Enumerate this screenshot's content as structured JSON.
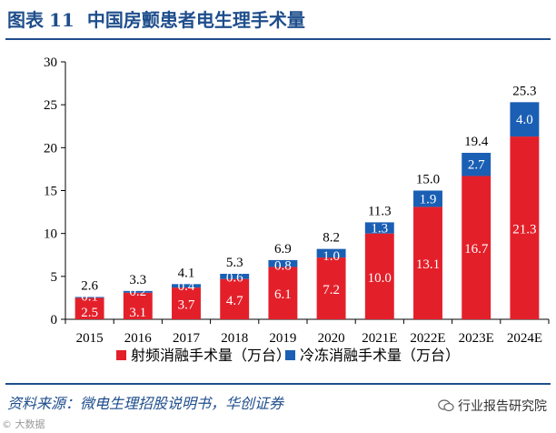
{
  "figure": {
    "label": "图表",
    "number": "11",
    "title": "中国房颤患者电生理手术量"
  },
  "source": "资料来源：微电生理招股说明书，华创证券",
  "watermark_right": "行业报告研究院",
  "watermark_left": "© 大数据",
  "chart_data": {
    "type": "bar",
    "stacked": true,
    "title": "中国房颤患者电生理手术量",
    "xlabel": "",
    "ylabel": "",
    "ylim": [
      0,
      30
    ],
    "yticks": [
      0,
      5,
      10,
      15,
      20,
      25,
      30
    ],
    "categories": [
      "2015",
      "2016",
      "2017",
      "2018",
      "2019",
      "2020",
      "2021E",
      "2022E",
      "2023E",
      "2024E"
    ],
    "series": [
      {
        "name": "射频消融手术量（万台）",
        "color": "#e3202a",
        "values": [
          2.5,
          3.1,
          3.7,
          4.7,
          6.1,
          7.2,
          10.0,
          13.1,
          16.7,
          21.3
        ],
        "labels": [
          "2.5",
          "3.1",
          "3.7",
          "4.7",
          "6.1",
          "7.2",
          "10.0",
          "13.1",
          "16.7",
          "21.3"
        ]
      },
      {
        "name": "冷冻消融手术量（万台）",
        "color": "#1a5fb4",
        "values": [
          0.1,
          0.2,
          0.4,
          0.6,
          0.8,
          1.0,
          1.3,
          1.9,
          2.7,
          4.0
        ],
        "labels": [
          "0.1",
          "0.2",
          "0.4",
          "0.6",
          "0.8",
          "1.0",
          "1.3",
          "1.9",
          "2.7",
          "4.0"
        ]
      }
    ],
    "totals": [
      2.6,
      3.3,
      4.1,
      5.3,
      6.9,
      8.2,
      11.3,
      15.0,
      19.4,
      25.3
    ],
    "total_labels": [
      "2.6",
      "3.3",
      "4.1",
      "5.3",
      "6.9",
      "8.2",
      "11.3",
      "15.0",
      "19.4",
      "25.3"
    ],
    "legend_position": "bottom-center",
    "grid": false
  }
}
